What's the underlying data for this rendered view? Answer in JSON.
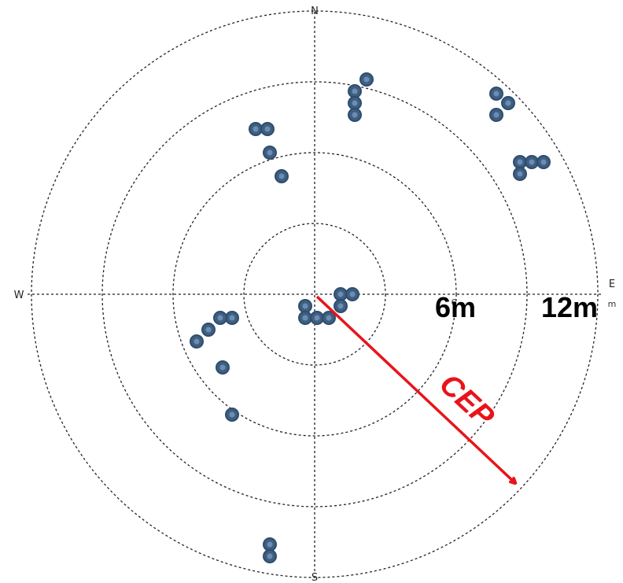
{
  "compass": {
    "north": "N",
    "south": "S",
    "west": "W",
    "east": "E"
  },
  "ring_labels": {
    "inner": "6m",
    "outer": "12m"
  },
  "small_ring_marks": {
    "inner": "6",
    "outer": "m"
  },
  "cep_label": "CEP",
  "colors": {
    "point": "#3f5f80",
    "cep_arrow": "#e8141a"
  },
  "diagram": {
    "type": "scatter",
    "rings_m": [
      3,
      6,
      9,
      12
    ],
    "points_m": [
      [
        2.2,
        9.1
      ],
      [
        1.7,
        8.6
      ],
      [
        1.7,
        8.1
      ],
      [
        1.7,
        7.6
      ],
      [
        -2.5,
        7.0
      ],
      [
        -2.0,
        7.0
      ],
      [
        -1.9,
        6.0
      ],
      [
        -1.4,
        5.0
      ],
      [
        7.7,
        8.5
      ],
      [
        8.2,
        8.1
      ],
      [
        7.7,
        7.6
      ],
      [
        8.7,
        5.6
      ],
      [
        9.2,
        5.6
      ],
      [
        9.7,
        5.6
      ],
      [
        8.7,
        5.1
      ],
      [
        1.1,
        0.0
      ],
      [
        1.6,
        0.0
      ],
      [
        1.1,
        -0.5
      ],
      [
        -0.4,
        -0.5
      ],
      [
        -0.4,
        -1.0
      ],
      [
        0.1,
        -1.0
      ],
      [
        0.6,
        -1.0
      ],
      [
        -3.5,
        -1.0
      ],
      [
        -4.0,
        -1.0
      ],
      [
        -4.5,
        -1.5
      ],
      [
        -5.0,
        -2.0
      ],
      [
        -3.9,
        -3.1
      ],
      [
        -3.5,
        -5.1
      ],
      [
        -1.9,
        -10.6
      ],
      [
        -1.9,
        -11.1
      ]
    ],
    "cep_radius_m": 12
  }
}
